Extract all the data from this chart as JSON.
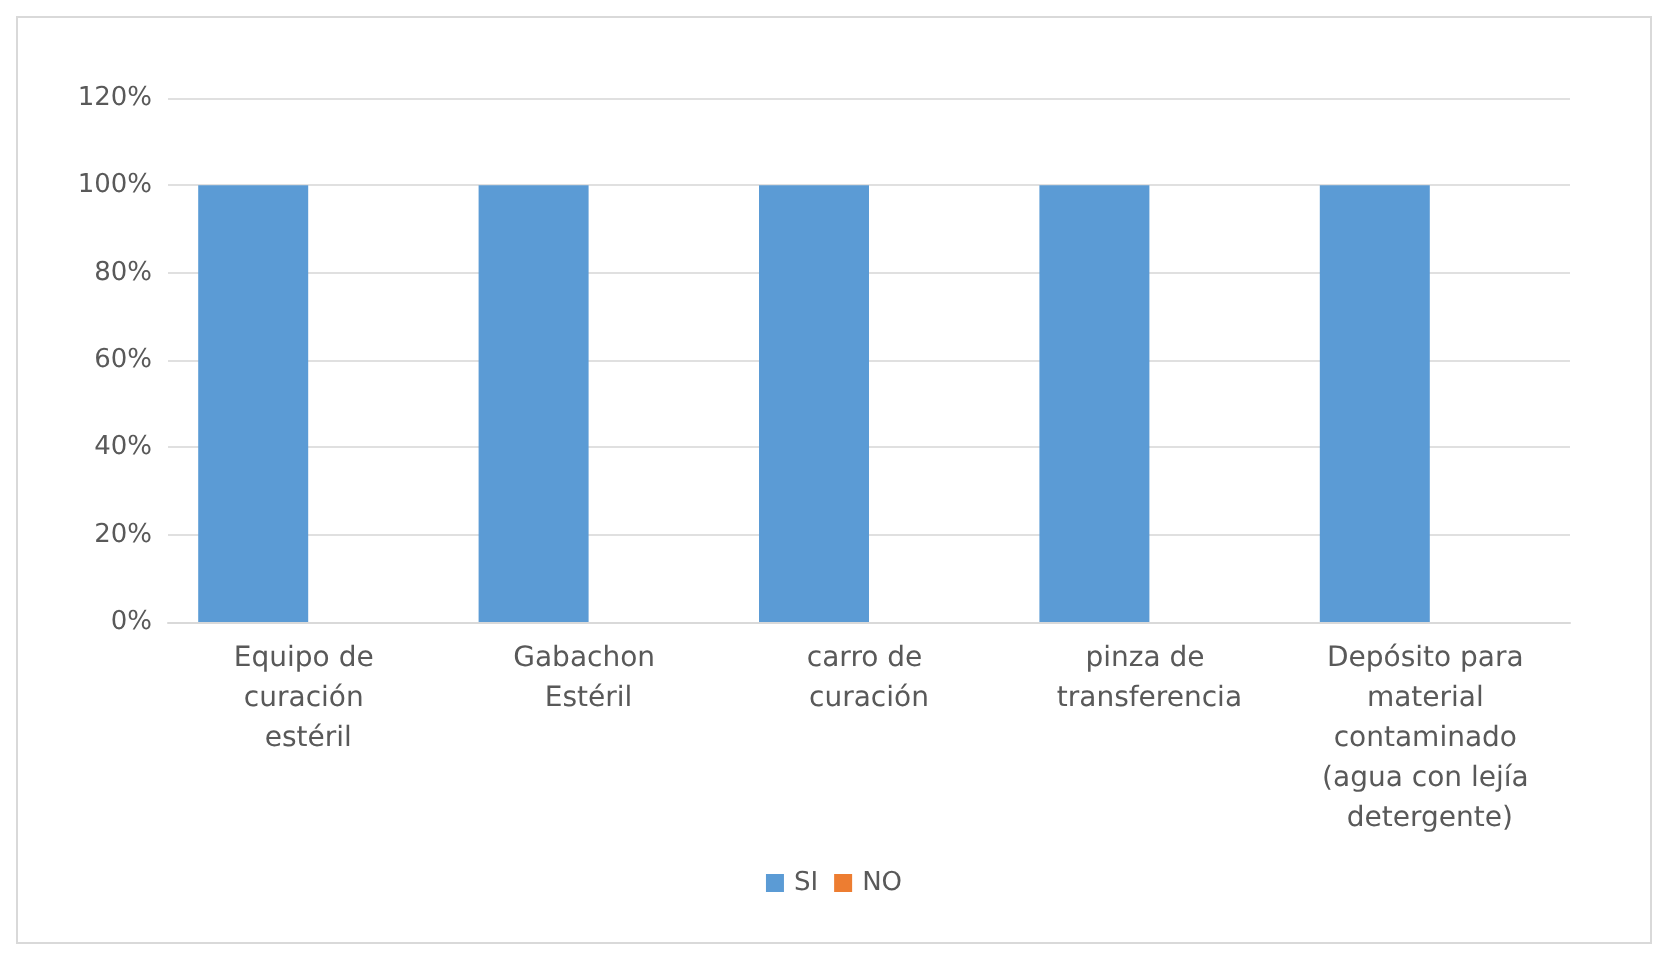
{
  "chart_data": {
    "type": "bar",
    "categories": [
      "Equipo de curación estéril",
      "Gabachon Estéril",
      "carro de curación",
      "pinza de transferencia",
      "Depósito para material contaminado (agua con lejía detergente)"
    ],
    "series": [
      {
        "name": "SI",
        "color": "#5b9bd5",
        "values": [
          100,
          100,
          100,
          100,
          100
        ]
      },
      {
        "name": "NO",
        "color": "#ed7d31",
        "values": [
          0,
          0,
          0,
          0,
          0
        ]
      }
    ],
    "ylim": [
      0,
      120
    ],
    "yticks": [
      {
        "value": 0,
        "label": "0%"
      },
      {
        "value": 20,
        "label": "20%"
      },
      {
        "value": 40,
        "label": "40%"
      },
      {
        "value": 60,
        "label": "60%"
      },
      {
        "value": 80,
        "label": "80%"
      },
      {
        "value": 100,
        "label": "100%"
      },
      {
        "value": 120,
        "label": "120%"
      }
    ],
    "grid": "y",
    "legend": "bottom"
  }
}
